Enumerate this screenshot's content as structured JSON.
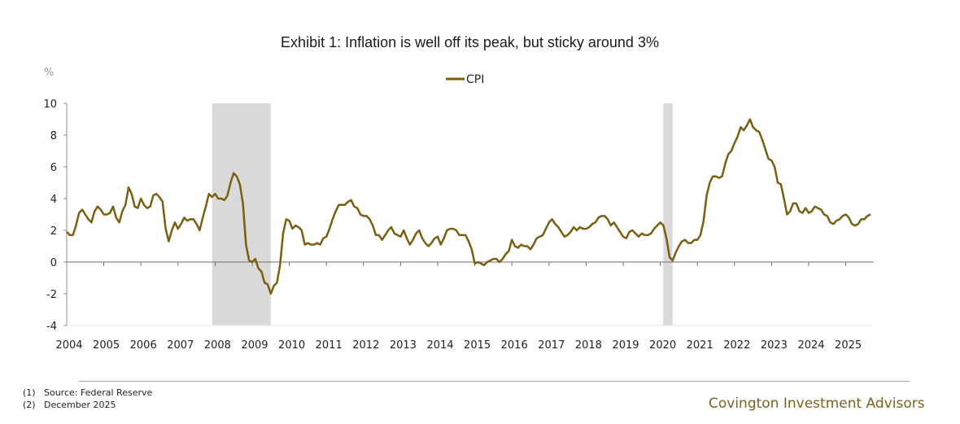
{
  "title": "Exhibit 1: Inflation is well off its peak, but sticky around 3%",
  "footnotes": [
    {
      "num": "(1)",
      "text": "Source: Federal Reserve"
    },
    {
      "num": "(2)",
      "text": "December 2025"
    }
  ],
  "brand": "Covington Investment Advisors",
  "colors": {
    "line": "#7a5f12",
    "recession": "#d9d9d9",
    "axis": "#8c8c8c",
    "brand": "#7a6320"
  },
  "chart_data": {
    "type": "line",
    "title": "Exhibit 1: Inflation is well off its peak, but sticky around 3%",
    "xlabel": "",
    "ylabel": "%",
    "ylim": [
      -4,
      10
    ],
    "yticks": [
      -4,
      -2,
      0,
      2,
      4,
      6,
      8,
      10
    ],
    "xlim": [
      2004,
      2025.75
    ],
    "xticks": [
      "2004",
      "2005",
      "2006",
      "2007",
      "2008",
      "2009",
      "2010",
      "2011",
      "2012",
      "2013",
      "2014",
      "2015",
      "2016",
      "2017",
      "2018",
      "2019",
      "2020",
      "2021",
      "2022",
      "2023",
      "2024",
      "2025"
    ],
    "legend": {
      "position": "top-center",
      "entries": [
        "CPI"
      ]
    },
    "grid": false,
    "recessions": [
      {
        "start": 2007.92,
        "end": 2009.5
      },
      {
        "start": 2020.08,
        "end": 2020.33
      }
    ],
    "series": [
      {
        "name": "CPI",
        "start": "2004-01",
        "frequency": "monthly",
        "values": [
          1.9,
          1.7,
          1.7,
          2.3,
          3.1,
          3.3,
          3.0,
          2.7,
          2.5,
          3.2,
          3.5,
          3.3,
          3.0,
          3.0,
          3.1,
          3.5,
          2.8,
          2.5,
          3.2,
          3.6,
          4.7,
          4.3,
          3.5,
          3.4,
          4.0,
          3.6,
          3.4,
          3.5,
          4.2,
          4.3,
          4.1,
          3.8,
          2.1,
          1.3,
          2.0,
          2.5,
          2.1,
          2.4,
          2.8,
          2.6,
          2.7,
          2.7,
          2.4,
          2.0,
          2.8,
          3.5,
          4.3,
          4.1,
          4.3,
          4.0,
          4.0,
          3.9,
          4.2,
          5.0,
          5.6,
          5.4,
          4.9,
          3.7,
          1.1,
          0.1,
          0.0,
          0.2,
          -0.4,
          -0.6,
          -1.3,
          -1.4,
          -2.0,
          -1.5,
          -1.3,
          -0.2,
          1.8,
          2.7,
          2.6,
          2.1,
          2.3,
          2.2,
          2.0,
          1.1,
          1.2,
          1.1,
          1.1,
          1.2,
          1.1,
          1.5,
          1.6,
          2.1,
          2.7,
          3.2,
          3.6,
          3.6,
          3.6,
          3.8,
          3.9,
          3.5,
          3.4,
          3.0,
          2.9,
          2.9,
          2.7,
          2.3,
          1.7,
          1.7,
          1.4,
          1.7,
          2.0,
          2.2,
          1.8,
          1.7,
          1.6,
          2.0,
          1.5,
          1.1,
          1.4,
          1.8,
          2.0,
          1.5,
          1.2,
          1.0,
          1.2,
          1.5,
          1.6,
          1.1,
          1.5,
          2.0,
          2.1,
          2.1,
          2.0,
          1.7,
          1.7,
          1.7,
          1.3,
          0.8,
          -0.1,
          0.0,
          -0.1,
          -0.2,
          0.0,
          0.1,
          0.2,
          0.2,
          0.0,
          0.2,
          0.5,
          0.7,
          1.4,
          1.0,
          0.9,
          1.1,
          1.0,
          1.0,
          0.8,
          1.1,
          1.5,
          1.6,
          1.7,
          2.1,
          2.5,
          2.7,
          2.4,
          2.2,
          1.9,
          1.6,
          1.7,
          1.9,
          2.2,
          2.0,
          2.2,
          2.1,
          2.1,
          2.2,
          2.4,
          2.5,
          2.8,
          2.9,
          2.9,
          2.7,
          2.3,
          2.5,
          2.2,
          1.9,
          1.6,
          1.5,
          1.9,
          2.0,
          1.8,
          1.6,
          1.8,
          1.7,
          1.7,
          1.8,
          2.1,
          2.3,
          2.5,
          2.3,
          1.5,
          0.3,
          0.1,
          0.6,
          1.0,
          1.3,
          1.4,
          1.2,
          1.2,
          1.4,
          1.4,
          1.7,
          2.6,
          4.2,
          5.0,
          5.4,
          5.4,
          5.3,
          5.4,
          6.2,
          6.8,
          7.0,
          7.5,
          7.9,
          8.5,
          8.3,
          8.6,
          9.0,
          8.5,
          8.3,
          8.2,
          7.7,
          7.1,
          6.5,
          6.4,
          6.0,
          5.0,
          4.9,
          4.0,
          3.0,
          3.2,
          3.7,
          3.7,
          3.2,
          3.1,
          3.4,
          3.1,
          3.2,
          3.5,
          3.4,
          3.3,
          3.0,
          2.9,
          2.5,
          2.4,
          2.6,
          2.7,
          2.9,
          3.0,
          2.8,
          2.4,
          2.3,
          2.4,
          2.7,
          2.7,
          2.9,
          3.0
        ]
      }
    ]
  }
}
